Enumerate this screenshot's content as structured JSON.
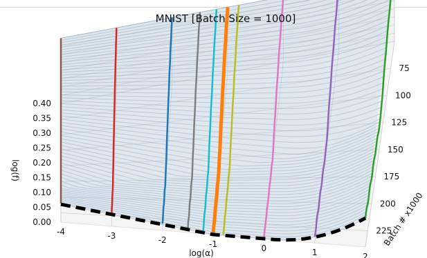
{
  "chart_data": {
    "type": "surface-3d",
    "title": "MNIST [Batch Size = 1000]",
    "xlabel": "log(α)",
    "ylabel": "Batch # x1000",
    "zlabel": "log(f)",
    "x_ticks": [
      "-4",
      "-3",
      "-2",
      "-1",
      "0",
      "1",
      "2"
    ],
    "y_ticks": [
      "75",
      "100",
      "125",
      "150",
      "175",
      "200",
      "225"
    ],
    "z_ticks": [
      "0.00",
      "0.05",
      "0.10",
      "0.15",
      "0.20",
      "0.25",
      "0.30",
      "0.35",
      "0.40"
    ],
    "xlim": [
      -4,
      2
    ],
    "ylim": [
      50,
      240
    ],
    "zlim": [
      0,
      0.4
    ],
    "grid": true,
    "surface_color": "#4a7aa8",
    "min_path_color": "#000000",
    "min_path_style": "dashed",
    "highlighted_path_color": "#ff7f0e",
    "series": [
      {
        "color": "#8c564b",
        "log_alpha": -4.0
      },
      {
        "color": "#d62728",
        "log_alpha": -3.0
      },
      {
        "color": "#1f77b4",
        "log_alpha": -2.0
      },
      {
        "color": "#7f7f7f",
        "log_alpha": -1.5
      },
      {
        "color": "#17becf",
        "log_alpha": -1.2
      },
      {
        "color": "#ff7f0e",
        "log_alpha": -1.0
      },
      {
        "color": "#bcbd22",
        "log_alpha": -0.8
      },
      {
        "color": "#e377c2",
        "log_alpha": 0.0
      },
      {
        "color": "#9467bd",
        "log_alpha": 1.0
      },
      {
        "color": "#2ca02c",
        "log_alpha": 2.0
      }
    ]
  }
}
